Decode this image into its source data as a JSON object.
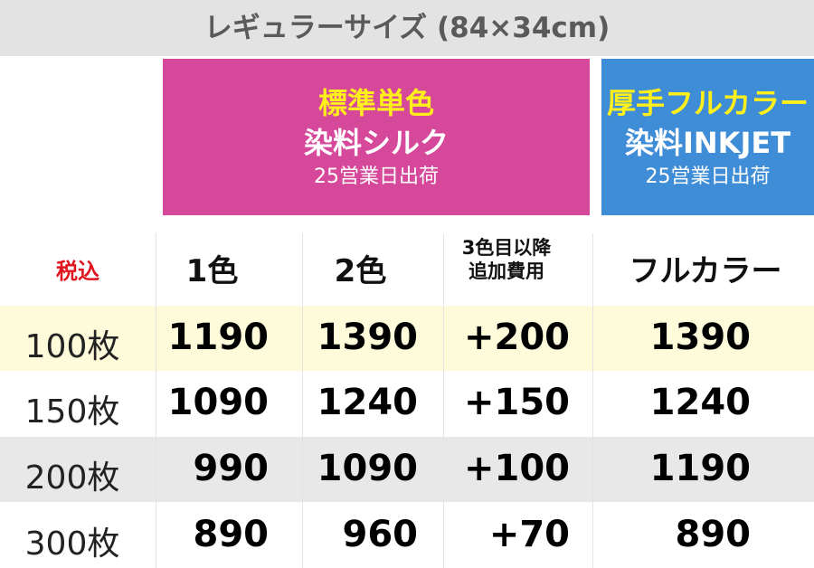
{
  "title": "レギュラーサイズ (84×34cm)",
  "plans": [
    {
      "name": "標準単色",
      "type": "染料シルク",
      "shipping": "25営業日出荷"
    },
    {
      "name": "厚手フルカラー",
      "type": "染料INKJET",
      "shipping": "25営業日出荷"
    }
  ],
  "table": {
    "headers": [
      "税込",
      "1色",
      "2色",
      [
        "3色目以降",
        "追加費用"
      ],
      "フルカラー"
    ],
    "rows": [
      [
        "100枚",
        1190,
        1390,
        "+200",
        1390
      ],
      [
        "150枚",
        1090,
        1240,
        "+150",
        1240
      ],
      [
        "200枚",
        990,
        1090,
        "+100",
        1190
      ],
      [
        "300枚",
        890,
        960,
        "+70",
        890
      ]
    ]
  }
}
